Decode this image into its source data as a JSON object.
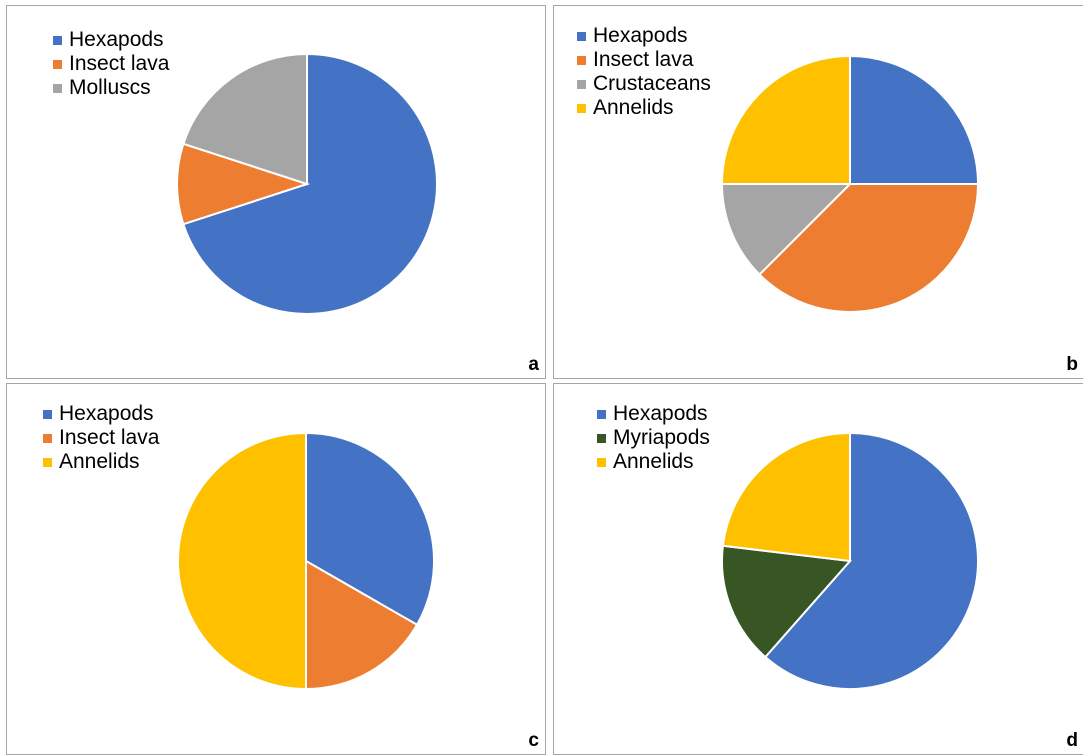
{
  "chart_data": [
    {
      "type": "pie",
      "panel_label": "a",
      "legend_position": "top-left",
      "series": [
        {
          "name": "Hexapods",
          "value": 70,
          "color": "#4472c4"
        },
        {
          "name": "Insect lava",
          "value": 10,
          "color": "#ed7d31"
        },
        {
          "name": "Molluscs",
          "value": 20,
          "color": "#a5a5a5"
        }
      ]
    },
    {
      "type": "pie",
      "panel_label": "b",
      "legend_position": "top-left",
      "series": [
        {
          "name": "Hexapods",
          "value": 25,
          "color": "#4472c4"
        },
        {
          "name": "Insect lava",
          "value": 37.5,
          "color": "#ed7d31"
        },
        {
          "name": "Crustaceans",
          "value": 12.5,
          "color": "#a5a5a5"
        },
        {
          "name": "Annelids",
          "value": 25,
          "color": "#ffc000"
        }
      ]
    },
    {
      "type": "pie",
      "panel_label": "c",
      "legend_position": "top-left",
      "series": [
        {
          "name": "Hexapods",
          "value": 33.3,
          "color": "#4472c4"
        },
        {
          "name": "Insect lava",
          "value": 16.7,
          "color": "#ed7d31"
        },
        {
          "name": "Annelids",
          "value": 50,
          "color": "#ffc000"
        }
      ]
    },
    {
      "type": "pie",
      "panel_label": "d",
      "legend_position": "top-left",
      "series": [
        {
          "name": "Hexapods",
          "value": 61.5,
          "color": "#4472c4"
        },
        {
          "name": "Myriapods",
          "value": 15.4,
          "color": "#375623"
        },
        {
          "name": "Annelids",
          "value": 23.1,
          "color": "#ffc000"
        }
      ]
    }
  ]
}
